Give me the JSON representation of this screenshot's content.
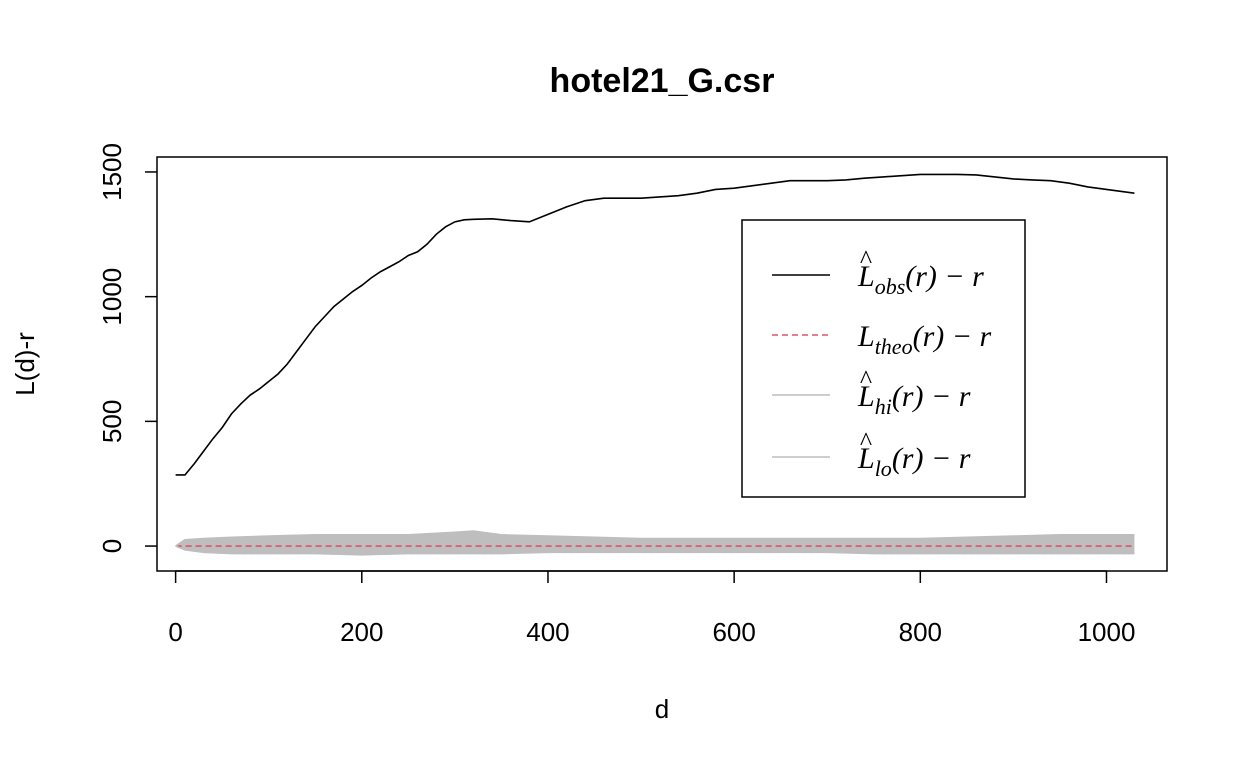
{
  "chart_data": {
    "type": "line",
    "title": "hotel21_G.csr",
    "xlabel": "d",
    "ylabel": "L(d)-r",
    "xlim": [
      -20,
      1065
    ],
    "ylim": [
      -100,
      1560
    ],
    "xticks": [
      "0",
      "200",
      "400",
      "600",
      "800",
      "1000"
    ],
    "yticks": [
      "0",
      "500",
      "1000",
      "1500"
    ],
    "legend_position": "right",
    "grid": false,
    "series": [
      {
        "name": "L̂obs(r) − r",
        "style": "solid",
        "color": "#000000",
        "x": [
          0,
          10,
          20,
          30,
          40,
          50,
          60,
          70,
          80,
          90,
          100,
          110,
          120,
          130,
          140,
          150,
          160,
          170,
          180,
          190,
          200,
          210,
          220,
          230,
          240,
          250,
          260,
          270,
          280,
          290,
          300,
          310,
          320,
          340,
          360,
          380,
          400,
          420,
          440,
          460,
          480,
          500,
          520,
          540,
          560,
          580,
          600,
          620,
          640,
          660,
          680,
          700,
          720,
          740,
          760,
          780,
          800,
          820,
          840,
          860,
          880,
          900,
          920,
          940,
          960,
          980,
          1000,
          1020,
          1030
        ],
        "y": [
          285,
          285,
          330,
          380,
          430,
          475,
          530,
          570,
          605,
          630,
          660,
          690,
          730,
          780,
          830,
          880,
          920,
          960,
          990,
          1020,
          1045,
          1075,
          1100,
          1120,
          1140,
          1165,
          1180,
          1210,
          1250,
          1280,
          1300,
          1308,
          1310,
          1312,
          1305,
          1300,
          1330,
          1360,
          1385,
          1395,
          1395,
          1395,
          1400,
          1405,
          1415,
          1430,
          1435,
          1445,
          1455,
          1465,
          1465,
          1465,
          1468,
          1475,
          1480,
          1485,
          1490,
          1490,
          1490,
          1488,
          1480,
          1472,
          1468,
          1465,
          1455,
          1440,
          1430,
          1420,
          1415
        ]
      },
      {
        "name": "Ltheo(r) − r",
        "style": "dashed",
        "color": "#DF536B",
        "x": [
          0,
          1030
        ],
        "y": [
          0,
          0
        ]
      },
      {
        "name": "L̂hi(r) − r",
        "style": "solid",
        "color": "#BEBEBE",
        "x": [
          0,
          10,
          30,
          60,
          100,
          150,
          200,
          250,
          300,
          320,
          350,
          400,
          450,
          500,
          550,
          600,
          650,
          700,
          750,
          800,
          850,
          900,
          950,
          1000,
          1030
        ],
        "y": [
          0,
          25,
          30,
          35,
          40,
          45,
          45,
          45,
          55,
          60,
          45,
          40,
          35,
          30,
          30,
          30,
          30,
          30,
          30,
          30,
          35,
          40,
          45,
          45,
          45
        ]
      },
      {
        "name": "L̂lo(r) − r",
        "style": "solid",
        "color": "#BEBEBE",
        "x": [
          0,
          10,
          30,
          60,
          100,
          150,
          200,
          250,
          300,
          320,
          350,
          400,
          450,
          500,
          550,
          600,
          650,
          700,
          750,
          800,
          850,
          900,
          950,
          1000,
          1030
        ],
        "y": [
          0,
          -15,
          -25,
          -30,
          -30,
          -30,
          -35,
          -30,
          -30,
          -30,
          -30,
          -25,
          -25,
          -25,
          -25,
          -25,
          -25,
          -25,
          -30,
          -30,
          -30,
          -30,
          -30,
          -30,
          -30
        ]
      }
    ]
  },
  "legend": {
    "entries": [
      {
        "base": "L",
        "hat": true,
        "sub": "obs",
        "tail": "(r) − r"
      },
      {
        "base": "L",
        "hat": false,
        "sub": "theo",
        "tail": "(r) − r"
      },
      {
        "base": "L",
        "hat": true,
        "sub": "hi",
        "tail": "(r) − r"
      },
      {
        "base": "L",
        "hat": true,
        "sub": "lo",
        "tail": "(r) − r"
      }
    ]
  }
}
